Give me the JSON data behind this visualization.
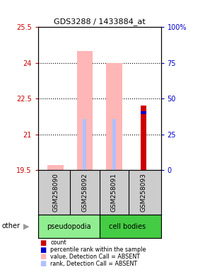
{
  "title": "GDS3288 / 1433884_at",
  "samples": [
    "GSM258090",
    "GSM258092",
    "GSM258091",
    "GSM258093"
  ],
  "ylim_left": [
    19.5,
    25.5
  ],
  "ylim_right": [
    0,
    100
  ],
  "yticks_left": [
    19.5,
    21,
    22.5,
    24,
    25.5
  ],
  "yticks_right": [
    0,
    25,
    50,
    75,
    100
  ],
  "ytick_labels_left": [
    "19.5",
    "21",
    "22.5",
    "24",
    "25.5"
  ],
  "ytick_labels_right": [
    "0",
    "25",
    "50",
    "75",
    "100%"
  ],
  "count_values": [
    null,
    null,
    null,
    22.2
  ],
  "rank_values": [
    null,
    null,
    null,
    21.85
  ],
  "absent_value_values": [
    19.72,
    24.5,
    24.0,
    null
  ],
  "absent_rank_values": [
    null,
    21.65,
    21.65,
    null
  ],
  "legend_items": [
    {
      "color": "#CC0000",
      "label": "count"
    },
    {
      "color": "#0000CC",
      "label": "percentile rank within the sample"
    },
    {
      "color": "#FFB6B6",
      "label": "value, Detection Call = ABSENT"
    },
    {
      "color": "#B0C0FF",
      "label": "rank, Detection Call = ABSENT"
    }
  ],
  "left_axis_color": "#CC0000",
  "right_axis_color": "#0000CC",
  "sample_box_color": "#CCCCCC",
  "pseudopodia_color": "#90EE90",
  "cell_bodies_color": "#44CC44"
}
